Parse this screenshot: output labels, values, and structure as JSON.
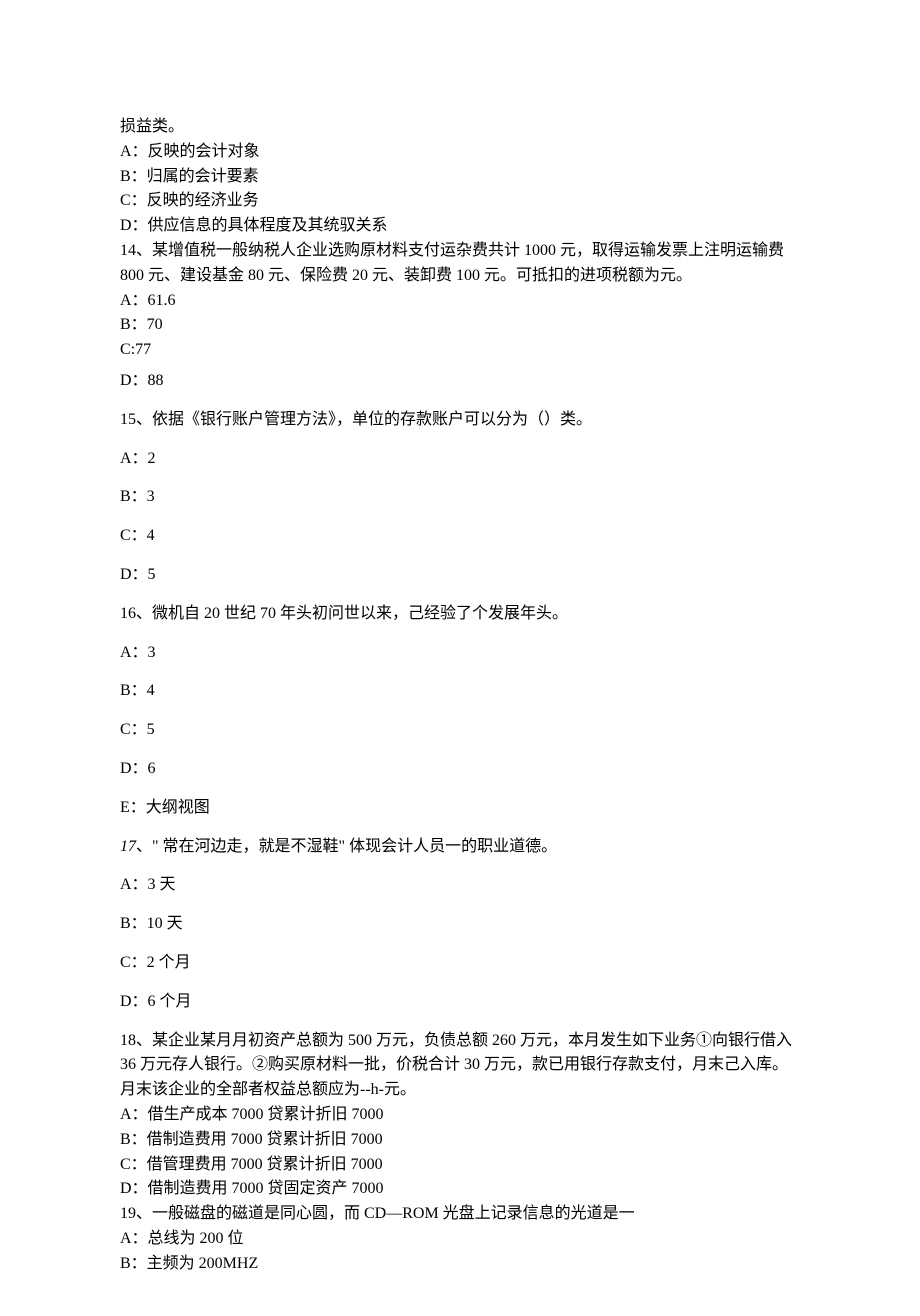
{
  "q13": {
    "tail": "损益类。",
    "a": "A：反映的会计对象",
    "b": "B：归属的会计要素",
    "c": "C：反映的经济业务",
    "d": "D：供应信息的具体程度及其统驭关系"
  },
  "q14": {
    "text": "14、某增值税一般纳税人企业选购原材料支付运杂费共计 1000 元，取得运输发票上注明运输费 800 元、建设基金 80 元、保险费 20 元、装卸费 100 元。可抵扣的进项税额为元。",
    "a": "A：61.6",
    "b": "B：70",
    "c": "C:77",
    "d": "D：88"
  },
  "q15": {
    "text": "15、依据《银行账户管理方法》，单位的存款账户可以分为（）类。",
    "a": "A：2",
    "b": "B：3",
    "c": "C：4",
    "d": "D：5"
  },
  "q16": {
    "text": "16、微机自 20 世纪 70 年头初问世以来，己经验了个发展年头。",
    "a": "A：3",
    "b": "B：4",
    "c": "C：5",
    "d": "D：6",
    "e": "E：大纲视图"
  },
  "q17": {
    "num": "17",
    "text": "、\" 常在河边走，就是不湿鞋\" 体现会计人员一的职业道德。",
    "a": "A：3 天",
    "b": "B：10 天",
    "c": "C：2 个月",
    "d": "D：6 个月"
  },
  "q18": {
    "text": "18、某企业某月月初资产总额为 500 万元，负债总额 260 万元，本月发生如下业务①向银行借入 36 万元存人银行。②购买原材料一批，价税合计 30 万元，款已用银行存款支付，月末己入库。月末该企业的全部者权益总额应为--h-元。",
    "a": "A：借生产成本 7000 贷累计折旧 7000",
    "b": "B：借制造费用 7000 贷累计折旧 7000",
    "c": "C：借管理费用 7000 贷累计折旧 7000",
    "d": "D：借制造费用 7000 贷固定资产 7000"
  },
  "q19": {
    "text": "19、一般磁盘的磁道是同心圆，而 CD—ROM 光盘上记录信息的光道是一",
    "a": "A：总线为 200 位",
    "b": "B：主频为 200MHZ"
  }
}
